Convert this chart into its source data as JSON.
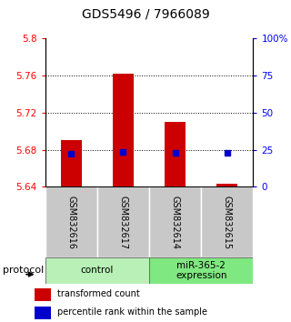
{
  "title": "GDS5496 / 7966089",
  "samples": [
    "GSM832616",
    "GSM832617",
    "GSM832614",
    "GSM832615"
  ],
  "bar_base": 5.64,
  "bar_tops": [
    5.69,
    5.762,
    5.71,
    5.643
  ],
  "blue_values": [
    5.676,
    5.678,
    5.677,
    5.677
  ],
  "ylim_left": [
    5.64,
    5.8
  ],
  "ylim_right": [
    0,
    100
  ],
  "left_ticks": [
    5.64,
    5.68,
    5.72,
    5.76,
    5.8
  ],
  "right_ticks": [
    0,
    25,
    50,
    75,
    100
  ],
  "right_tick_labels": [
    "0",
    "25",
    "50",
    "75",
    "100%"
  ],
  "dotted_lines": [
    5.68,
    5.72,
    5.76
  ],
  "groups": [
    {
      "label": "control",
      "color": "#b8f0b8"
    },
    {
      "label": "miR-365-2\nexpression",
      "color": "#80e880"
    }
  ],
  "bar_color": "#cc0000",
  "blue_color": "#0000cc",
  "protocol_label": "protocol",
  "legend_bar_label": "transformed count",
  "legend_blue_label": "percentile rank within the sample",
  "sample_bg": "#c8c8c8",
  "title_fontsize": 10,
  "tick_fontsize": 7.5,
  "sample_fontsize": 7,
  "proto_fontsize": 7.5,
  "legend_fontsize": 7
}
